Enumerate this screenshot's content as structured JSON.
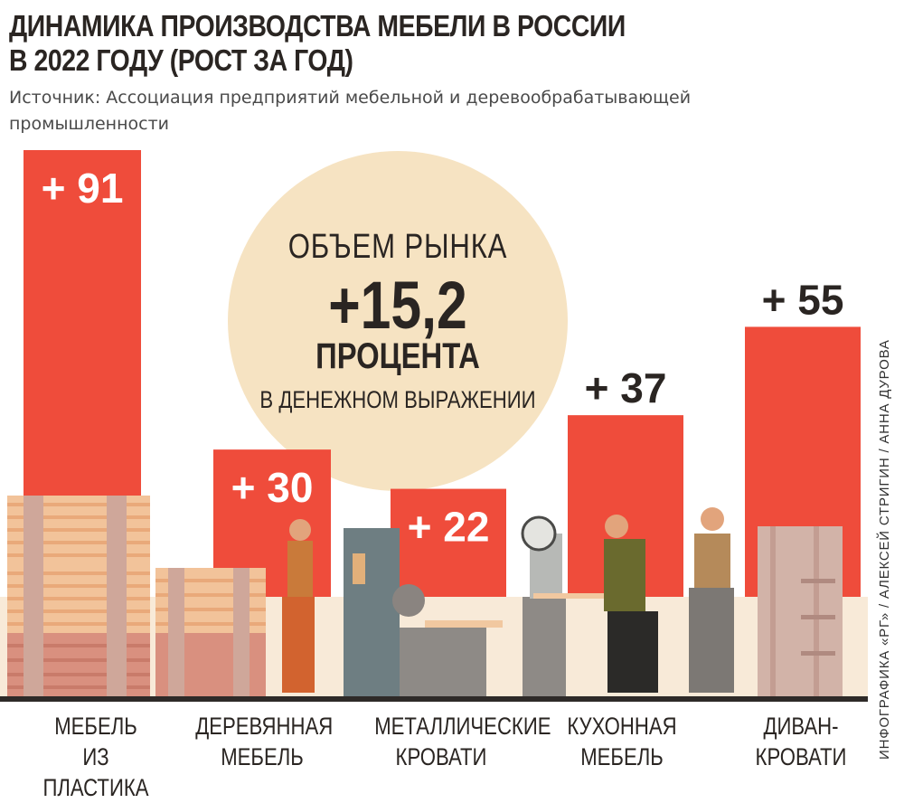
{
  "header": {
    "title_line1": "ДИНАМИКА ПРОИЗВОДСТВА МЕБЕЛИ В РОССИИ",
    "title_line2": "В 2022 ГОДУ (РОСТ ЗА ГОД)",
    "source": "Источник: Ассоциация предприятий мебельной и деревообрабатывающей промышленности"
  },
  "market": {
    "line1": "ОБЪЕМ РЫНКА",
    "value": "+15,2",
    "unit": "ПРОЦЕНТА",
    "note": "В ДЕНЕЖНОМ ВЫРАЖЕНИИ"
  },
  "chart_data": {
    "type": "bar",
    "categories": [
      [
        "МЕБЕЛЬ",
        "ИЗ ПЛАСТИКА"
      ],
      [
        "ДЕРЕВЯННАЯ",
        "МЕБЕЛЬ"
      ],
      [
        "МЕТАЛЛИЧЕСКИЕ",
        "КРОВАТИ"
      ],
      [
        "КУХОННАЯ",
        "МЕБЕЛЬ"
      ],
      [
        "ДИВАН-",
        "КРОВАТИ"
      ]
    ],
    "values": [
      91,
      30,
      22,
      37,
      55
    ],
    "value_labels": [
      "+ 91",
      "+ 30",
      "+ 22",
      "+ 37",
      "+ 55"
    ],
    "ylim": [
      0,
      91
    ],
    "bar_color": "#ef4c3b"
  },
  "credit": "ИНФОГРАФИКА «РГ» / АЛЕКСЕЙ СТРИГИН / АННА ДУРОВА"
}
